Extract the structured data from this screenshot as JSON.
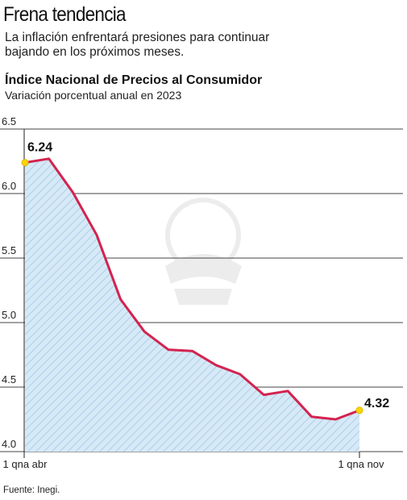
{
  "header": {
    "headline": "Frena tendencia",
    "lede": "La inflación enfrentará presiones para continuar bajando en los próximos meses."
  },
  "footer": {
    "source": "Fuente: Inegi."
  },
  "colors": {
    "line": "#d4234f",
    "area_fill": "#d6e9f7",
    "hatch": "#9fc3e0",
    "grid": "#444444",
    "marker": "#ffd400"
  },
  "chart_data": {
    "type": "area",
    "title": "Índice Nacional de Precios al Consumidor",
    "subtitle": "Variación porcentual anual en 2023",
    "xlabel": "",
    "ylabel": "",
    "ylim": [
      4.0,
      6.5
    ],
    "yticks": [
      "6.5",
      "6.0",
      "5.5",
      "5.0",
      "4.5",
      "4.0"
    ],
    "grid": true,
    "x_tick_labels": [
      "1 qna abr",
      "1 qna nov"
    ],
    "series": [
      {
        "values": [
          6.24,
          6.27,
          6.01,
          5.68,
          5.18,
          4.93,
          4.79,
          4.78,
          4.67,
          4.6,
          4.44,
          4.47,
          4.27,
          4.25,
          4.32
        ]
      }
    ],
    "annotations": [
      {
        "index": 0,
        "text": "6.24"
      },
      {
        "index": 14,
        "text": "4.32"
      }
    ]
  }
}
